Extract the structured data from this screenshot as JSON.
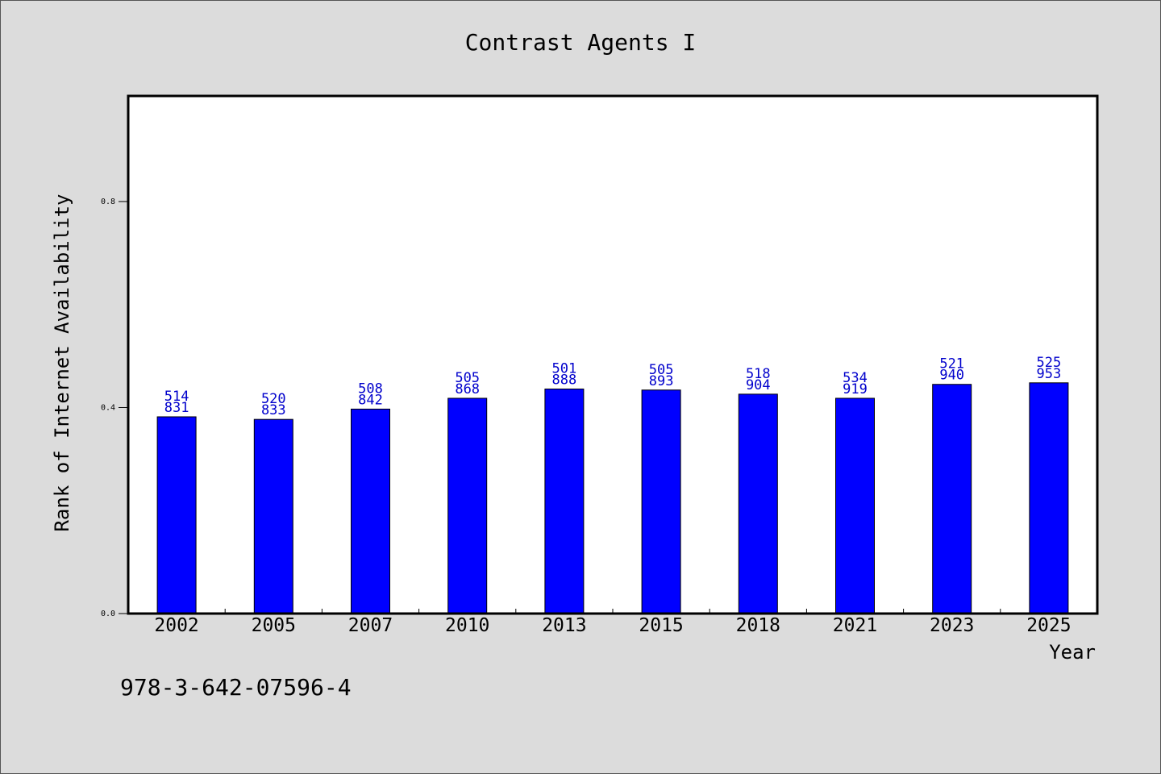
{
  "chart_data": {
    "type": "bar",
    "title": "Contrast Agents I",
    "xlabel": "Year",
    "ylabel": "Rank of Internet Availability",
    "categories": [
      "2002",
      "2005",
      "2007",
      "2010",
      "2013",
      "2015",
      "2018",
      "2021",
      "2023",
      "2025"
    ],
    "values": [
      0.382,
      0.377,
      0.397,
      0.418,
      0.436,
      0.434,
      0.426,
      0.418,
      0.445,
      0.448
    ],
    "data_labels": [
      [
        "514",
        "831"
      ],
      [
        "520",
        "833"
      ],
      [
        "508",
        "842"
      ],
      [
        "505",
        "868"
      ],
      [
        "501",
        "888"
      ],
      [
        "505",
        "893"
      ],
      [
        "518",
        "904"
      ],
      [
        "534",
        "919"
      ],
      [
        "521",
        "940"
      ],
      [
        "525",
        "953"
      ]
    ],
    "yticks": [
      "0.0",
      "0.4",
      "0.8"
    ],
    "ylim": [
      0,
      1.005
    ],
    "grid": false,
    "legend": "none",
    "bar_color": "#0000ff",
    "label_color": "#0000cc",
    "background_color": "#dcdcdc",
    "plot_background": "#ffffff"
  },
  "footer": {
    "isbn": "978-3-642-07596-4"
  }
}
